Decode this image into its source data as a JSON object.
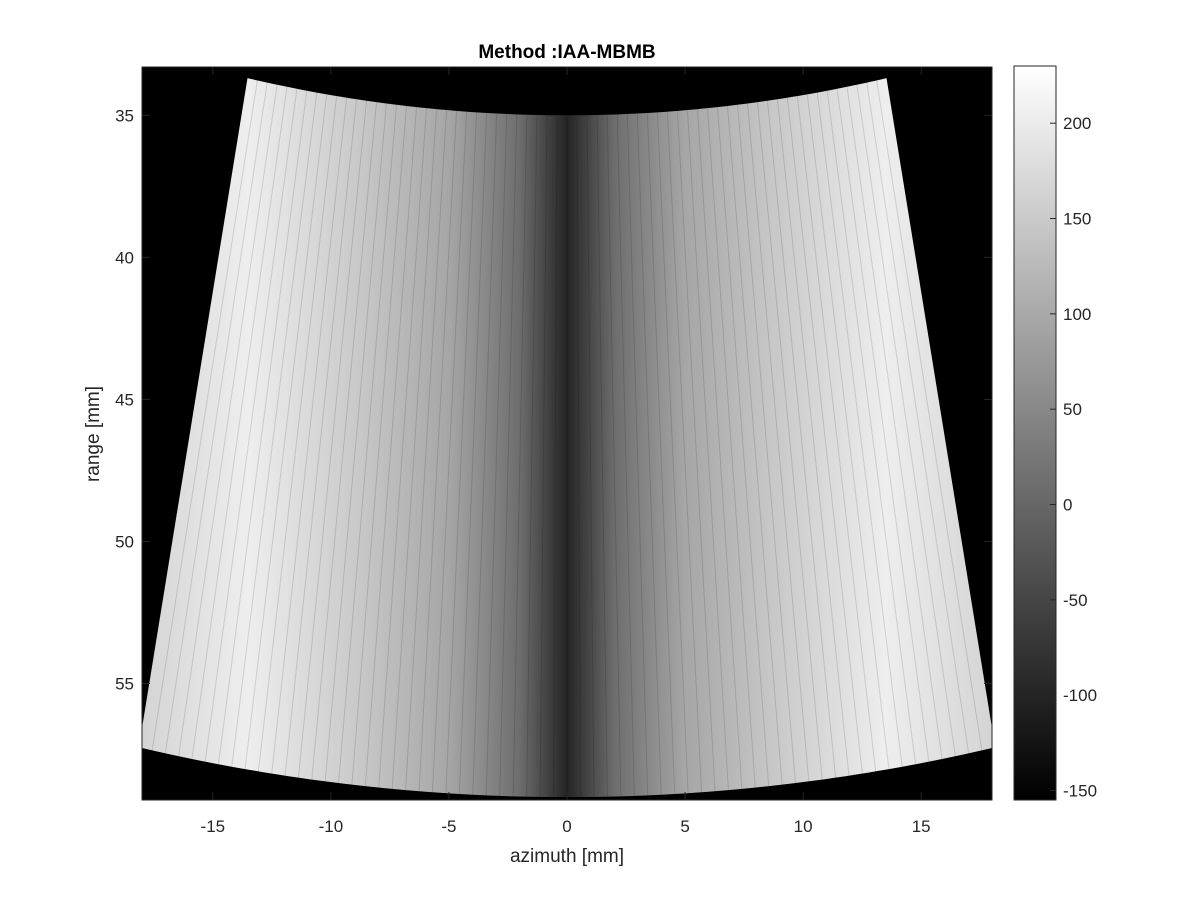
{
  "chart_data": {
    "type": "heatmap",
    "title": "Method :IAA-MBMB",
    "xlabel": "azimuth [mm]",
    "ylabel": "range [mm]",
    "xlim": [
      -18,
      18
    ],
    "ylim": [
      33.3,
      59.1
    ],
    "y_reversed": true,
    "xticks": [
      -15,
      -10,
      -5,
      0,
      5,
      10,
      15
    ],
    "yticks": [
      35,
      40,
      45,
      50,
      55
    ],
    "colormap": "gray",
    "clim": [
      -155,
      230
    ],
    "colorbar_ticks": [
      200,
      150,
      100,
      50,
      0,
      -50,
      -100,
      -150
    ],
    "background_color": "#000000",
    "sector": {
      "apex_range": -35.6,
      "inner_radius": 70.6,
      "outer_radius": 94.6,
      "half_angle_deg": 11.05
    },
    "center_intensity": -100,
    "edge_intensity": 165,
    "bright_band_intensity": 205,
    "bright_band_azimuth": [
      -13.5,
      13.5
    ],
    "grid": false
  }
}
